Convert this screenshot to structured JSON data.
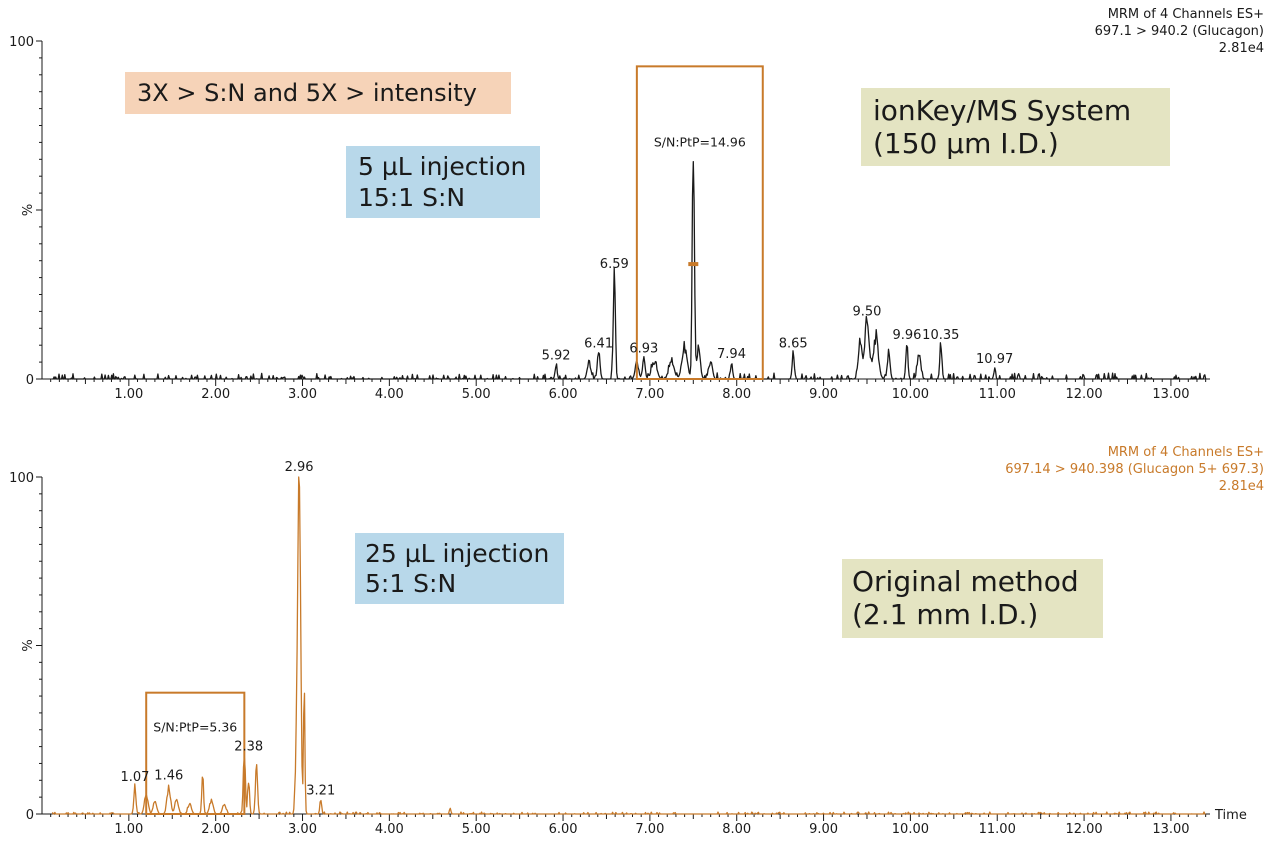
{
  "annotations": {
    "top_tag": "3X > S:N and 5X > intensity",
    "top_injection": [
      "5 µL injection",
      "15:1 S:N"
    ],
    "top_system": [
      "ionKey/MS System",
      "(150 µm I.D.)"
    ],
    "bottom_injection": [
      "25 µL injection",
      "5:1 S:N"
    ],
    "bottom_system": [
      "Original method",
      "(2.1 mm I.D.)"
    ]
  },
  "chart_data": [
    {
      "type": "line",
      "header": [
        "MRM of 4 Channels ES+",
        "697.1 > 940.2 (Glucagon)",
        "2.81e4"
      ],
      "ylabel": "%",
      "xlabel": "",
      "xlim": [
        0,
        13.45
      ],
      "ylim": [
        0,
        100
      ],
      "x_ticks": [
        "1.00",
        "2.00",
        "3.00",
        "4.00",
        "5.00",
        "6.00",
        "7.00",
        "8.00",
        "9.00",
        "10.00",
        "11.00",
        "12.00",
        "13.00"
      ],
      "y_ticks": [
        "0",
        "%",
        "100"
      ],
      "color": "#1a1a1a",
      "box_label": "S/N:PtP=14.96",
      "box_range": {
        "x": [
          6.85,
          8.3
        ],
        "y": [
          0,
          92.5
        ]
      },
      "noise_level": 1.6,
      "peaks": [
        {
          "x": 5.92,
          "y": 4,
          "w": 0.012
        },
        {
          "x": 6.3,
          "y": 5,
          "w": 0.02
        },
        {
          "x": 6.41,
          "y": 7.5,
          "w": 0.015
        },
        {
          "x": 6.59,
          "y": 31,
          "w": 0.012
        },
        {
          "x": 6.85,
          "y": 5,
          "w": 0.02
        },
        {
          "x": 6.93,
          "y": 6,
          "w": 0.015
        },
        {
          "x": 7.05,
          "y": 5,
          "w": 0.03
        },
        {
          "x": 7.25,
          "y": 5,
          "w": 0.03
        },
        {
          "x": 7.4,
          "y": 9,
          "w": 0.03
        },
        {
          "x": 7.5,
          "y": 67,
          "w": 0.012
        },
        {
          "x": 7.56,
          "y": 9,
          "w": 0.02
        },
        {
          "x": 7.7,
          "y": 5,
          "w": 0.02
        },
        {
          "x": 7.94,
          "y": 4.5,
          "w": 0.012
        },
        {
          "x": 8.65,
          "y": 7.5,
          "w": 0.012
        },
        {
          "x": 9.42,
          "y": 12,
          "w": 0.02
        },
        {
          "x": 9.5,
          "y": 17,
          "w": 0.025
        },
        {
          "x": 9.6,
          "y": 12,
          "w": 0.03
        },
        {
          "x": 9.75,
          "y": 8,
          "w": 0.015
        },
        {
          "x": 9.96,
          "y": 10,
          "w": 0.012
        },
        {
          "x": 10.1,
          "y": 7,
          "w": 0.02
        },
        {
          "x": 10.35,
          "y": 10,
          "w": 0.012
        },
        {
          "x": 10.97,
          "y": 3,
          "w": 0.01
        }
      ],
      "peak_labels": [
        {
          "x": 5.92,
          "y": 4,
          "label": "5.92"
        },
        {
          "x": 6.41,
          "y": 7.5,
          "label": "6.41"
        },
        {
          "x": 6.59,
          "y": 31,
          "label": "6.59"
        },
        {
          "x": 6.93,
          "y": 6,
          "label": "6.93"
        },
        {
          "x": 7.94,
          "y": 4.5,
          "label": "7.94"
        },
        {
          "x": 8.65,
          "y": 7.5,
          "label": "8.65"
        },
        {
          "x": 9.5,
          "y": 17,
          "label": "9.50"
        },
        {
          "x": 9.96,
          "y": 10,
          "label": "9.96"
        },
        {
          "x": 10.35,
          "y": 10,
          "label": "10.35"
        },
        {
          "x": 10.97,
          "y": 3,
          "label": "10.97"
        }
      ],
      "marker": {
        "x": 7.5,
        "y": 34
      }
    },
    {
      "type": "line",
      "header": [
        "MRM of 4 Channels ES+",
        "697.14 > 940.398 (Glucagon 5+ 697.3)",
        "2.81e4"
      ],
      "ylabel": "%",
      "xlabel": "Time",
      "xlim": [
        0,
        13.45
      ],
      "ylim": [
        0,
        100
      ],
      "x_ticks": [
        "1.00",
        "2.00",
        "3.00",
        "4.00",
        "5.00",
        "6.00",
        "7.00",
        "8.00",
        "9.00",
        "10.00",
        "11.00",
        "12.00",
        "13.00"
      ],
      "y_ticks": [
        "0",
        "%",
        "100"
      ],
      "color": "#c87a2a",
      "box_label": "S/N:PtP=5.36",
      "box_range": {
        "x": [
          1.2,
          2.33
        ],
        "y": [
          0,
          36
        ]
      },
      "noise_level": 0.6,
      "peaks": [
        {
          "x": 1.07,
          "y": 8,
          "w": 0.012
        },
        {
          "x": 1.2,
          "y": 6,
          "w": 0.02
        },
        {
          "x": 1.3,
          "y": 4,
          "w": 0.02
        },
        {
          "x": 1.46,
          "y": 8,
          "w": 0.02
        },
        {
          "x": 1.55,
          "y": 4,
          "w": 0.02
        },
        {
          "x": 1.7,
          "y": 3,
          "w": 0.02
        },
        {
          "x": 1.85,
          "y": 13,
          "w": 0.01
        },
        {
          "x": 1.95,
          "y": 4,
          "w": 0.02
        },
        {
          "x": 2.1,
          "y": 3,
          "w": 0.02
        },
        {
          "x": 2.33,
          "y": 17,
          "w": 0.012
        },
        {
          "x": 2.38,
          "y": 11,
          "w": 0.01
        },
        {
          "x": 2.47,
          "y": 14,
          "w": 0.012
        },
        {
          "x": 2.92,
          "y": 8,
          "w": 0.01
        },
        {
          "x": 2.96,
          "y": 100,
          "w": 0.018
        },
        {
          "x": 3.02,
          "y": 36,
          "w": 0.008
        },
        {
          "x": 3.21,
          "y": 4,
          "w": 0.01
        },
        {
          "x": 4.7,
          "y": 2,
          "w": 0.008
        }
      ],
      "peak_labels": [
        {
          "x": 1.07,
          "y": 8,
          "label": "1.07"
        },
        {
          "x": 1.46,
          "y": 8.5,
          "label": "1.46"
        },
        {
          "x": 2.38,
          "y": 17,
          "label": "2.38"
        },
        {
          "x": 2.96,
          "y": 100,
          "label": "2.96"
        },
        {
          "x": 3.21,
          "y": 4,
          "label": "3.21"
        }
      ]
    }
  ]
}
